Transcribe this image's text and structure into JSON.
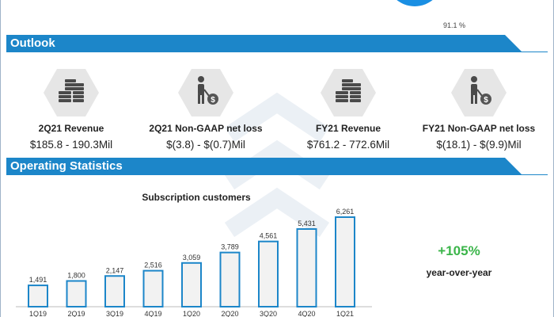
{
  "top": {
    "percent_label": "91.1 %",
    "accent": "#1a8fe3"
  },
  "outlook": {
    "title": "Outlook",
    "items": [
      {
        "label": "2Q21 Revenue",
        "value": "$185.8 - 190.3Mil",
        "icon": "coins-icon"
      },
      {
        "label": "2Q21 Non-GAAP net loss",
        "value": "$(3.8) - $(0.7)Mil",
        "icon": "person-dollar-icon"
      },
      {
        "label": "FY21 Revenue",
        "value": "$761.2 - 772.6Mil",
        "icon": "coins-icon"
      },
      {
        "label": "FY21 Non-GAAP net loss",
        "value": "$(18.1) - $(9.9)Mil",
        "icon": "person-dollar-icon"
      }
    ]
  },
  "operating": {
    "title": "Operating Statistics"
  },
  "chart_data": {
    "type": "bar",
    "title": "Subscription customers",
    "categories": [
      "1Q19",
      "2Q19",
      "3Q19",
      "4Q19",
      "1Q20",
      "2Q20",
      "3Q20",
      "4Q20",
      "1Q21"
    ],
    "values": [
      1491,
      1800,
      2147,
      2516,
      3059,
      3789,
      4561,
      5431,
      6261
    ],
    "value_labels": [
      "1,491",
      "1,800",
      "2,147",
      "2,516",
      "3,059",
      "3,789",
      "4,561",
      "5,431",
      "6,261"
    ],
    "ylim": [
      0,
      6261
    ],
    "grid": false,
    "bar_fill": "#f2f2f2",
    "bar_stroke": "#1c86c9"
  },
  "yoy": {
    "value": "+105%",
    "label": "year-over-year",
    "color": "#3bb54a"
  },
  "colors": {
    "banner": "#1c86c9",
    "icon_bg": "#e6e6e6",
    "icon_fg": "#4a4a4a",
    "dollar_badge": "#555555"
  }
}
